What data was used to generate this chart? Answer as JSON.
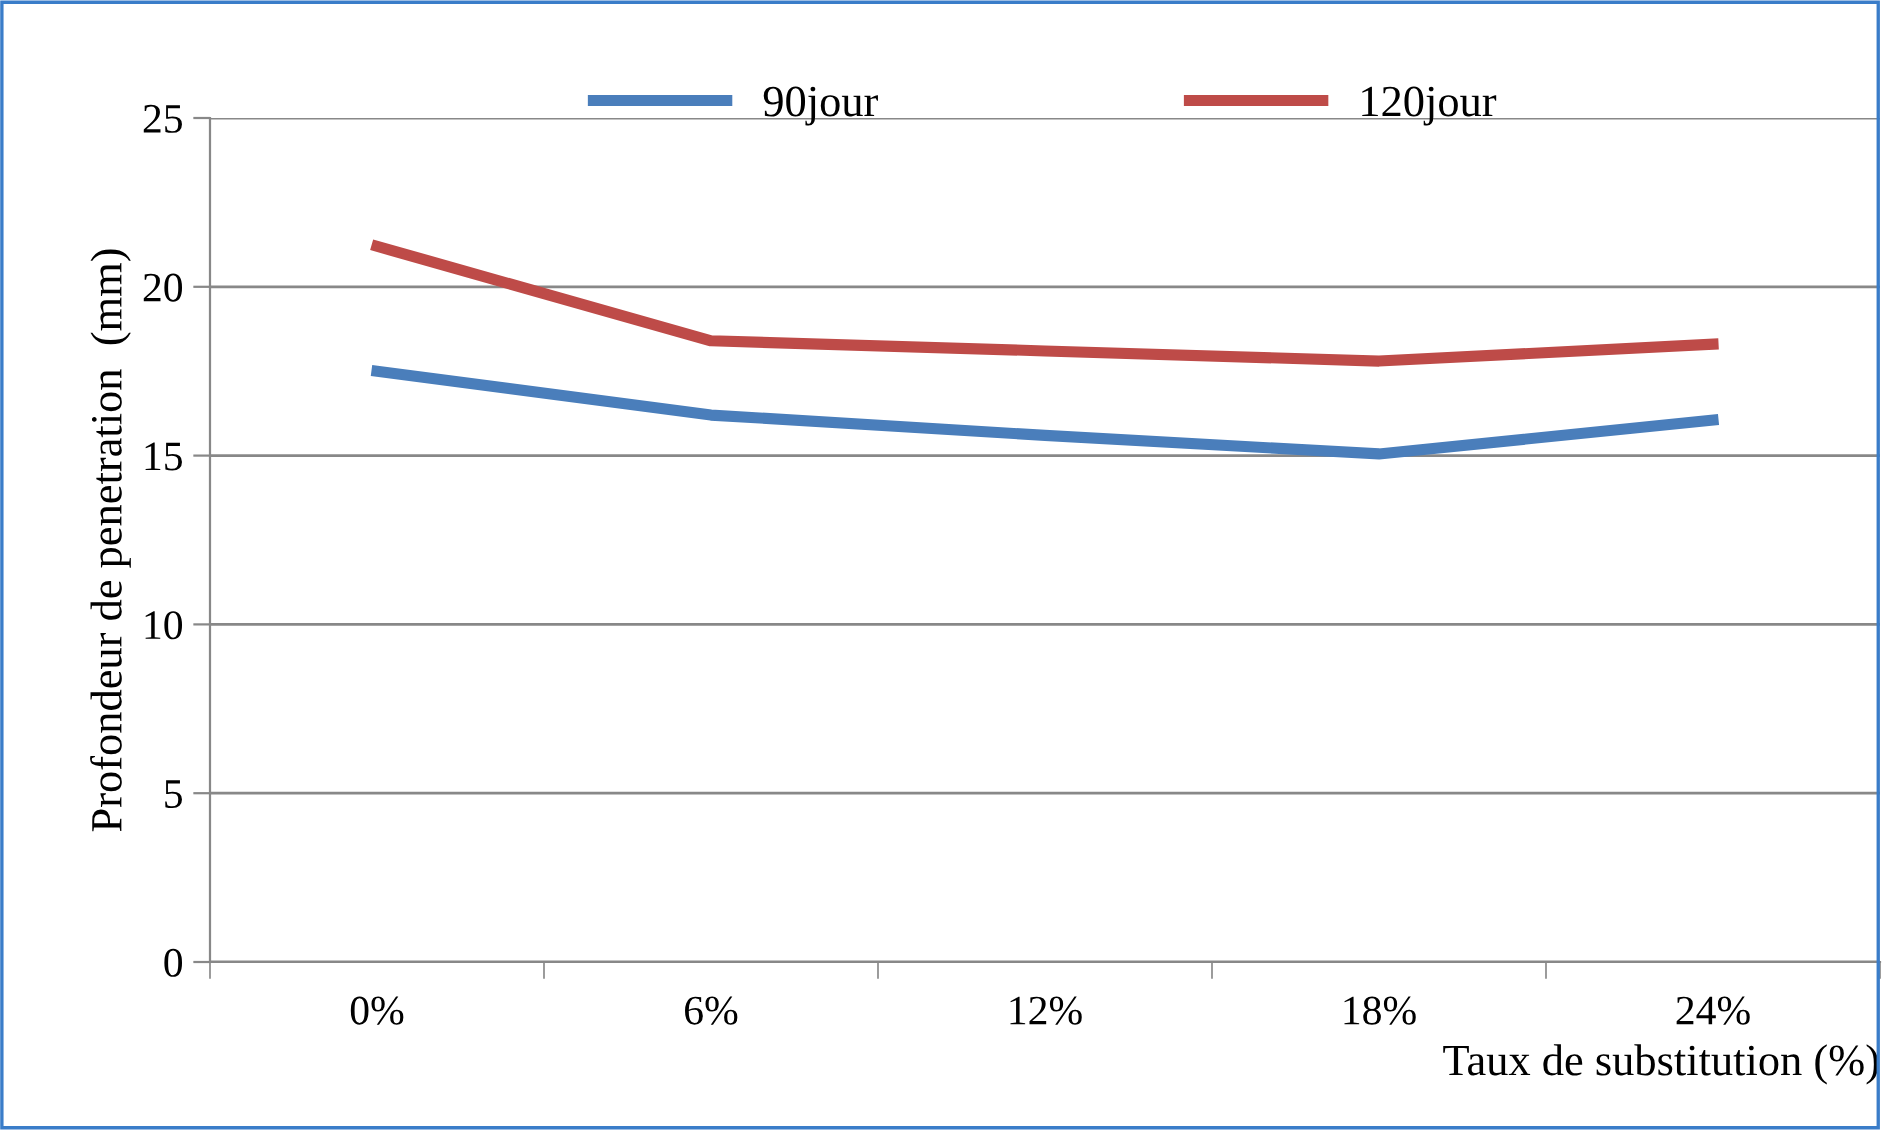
{
  "chart_data": {
    "type": "line",
    "categories": [
      "0%",
      "6%",
      "12%",
      "18%",
      "24%"
    ],
    "series": [
      {
        "name": "90jour",
        "color": "#4a7ebb",
        "values": [
          17.5,
          16.2,
          15.6,
          15.05,
          16.05
        ]
      },
      {
        "name": "120jour",
        "color": "#be4b48",
        "values": [
          21.2,
          18.4,
          18.1,
          17.8,
          18.3
        ]
      }
    ],
    "ylabel": "Profondeur de penetration  (mm)",
    "xlabel": "Taux de substitution (%)",
    "ylim": [
      0,
      25
    ],
    "yticks": [
      0,
      5,
      10,
      15,
      20,
      25
    ],
    "grid": "y",
    "legend": "top",
    "marker": "none",
    "line_style": "solid"
  }
}
